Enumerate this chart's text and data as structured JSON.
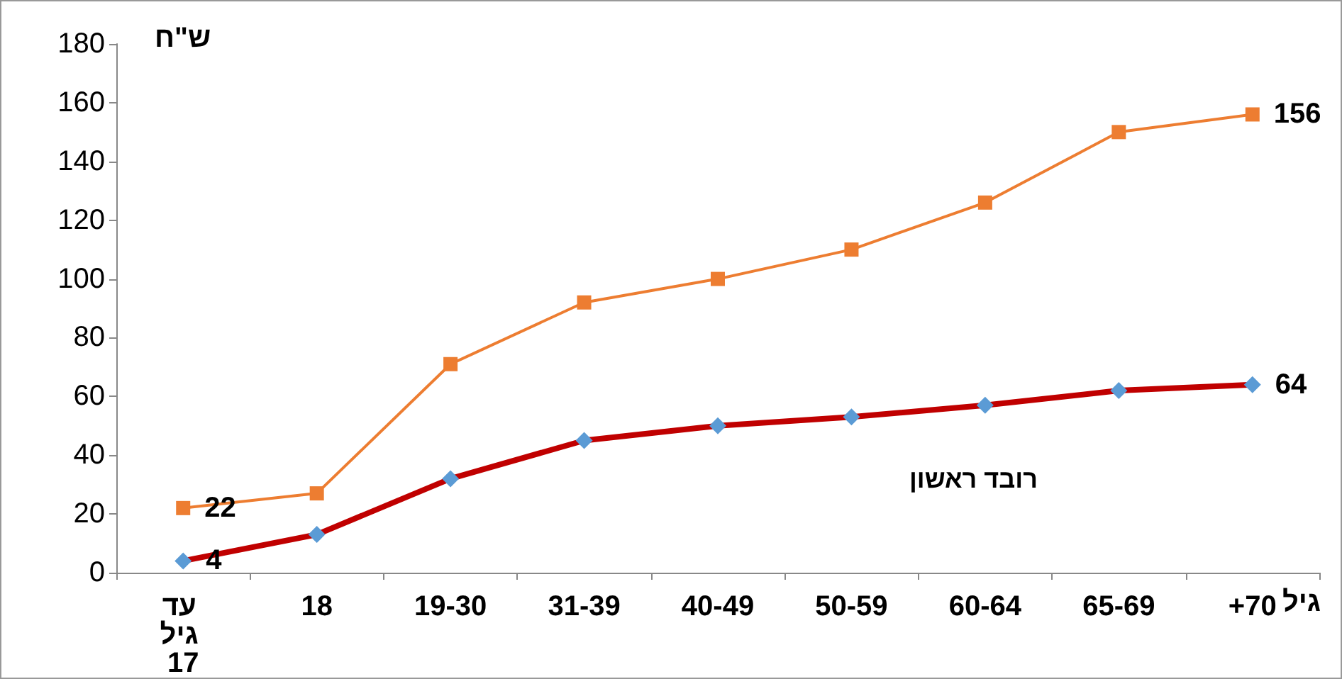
{
  "chart_data": {
    "type": "line",
    "ylabel": "ש\"ח",
    "xlabel": "גיל",
    "categories": [
      "עד גיל 17",
      "18",
      "19-30",
      "31-39",
      "40-49",
      "50-59",
      "60-64",
      "65-69",
      "+70"
    ],
    "series": [
      {
        "name": "רובד ראשון",
        "color": "#c00000",
        "marker": "diamond",
        "values": [
          4,
          13,
          32,
          45,
          50,
          53,
          57,
          62,
          64
        ],
        "value_labels": [
          "4",
          null,
          null,
          null,
          null,
          null,
          null,
          null,
          "64"
        ]
      },
      {
        "color": "#ed7d31",
        "marker": "square",
        "values": [
          22,
          27,
          71,
          92,
          100,
          110,
          126,
          150,
          156
        ],
        "value_labels": [
          "22",
          null,
          null,
          null,
          null,
          null,
          null,
          null,
          "156"
        ]
      }
    ],
    "ylim": [
      0,
      180
    ],
    "yticks": [
      0,
      20,
      40,
      60,
      80,
      100,
      120,
      140,
      160,
      180
    ],
    "grid": false,
    "legend": false,
    "line_style": "solid"
  }
}
